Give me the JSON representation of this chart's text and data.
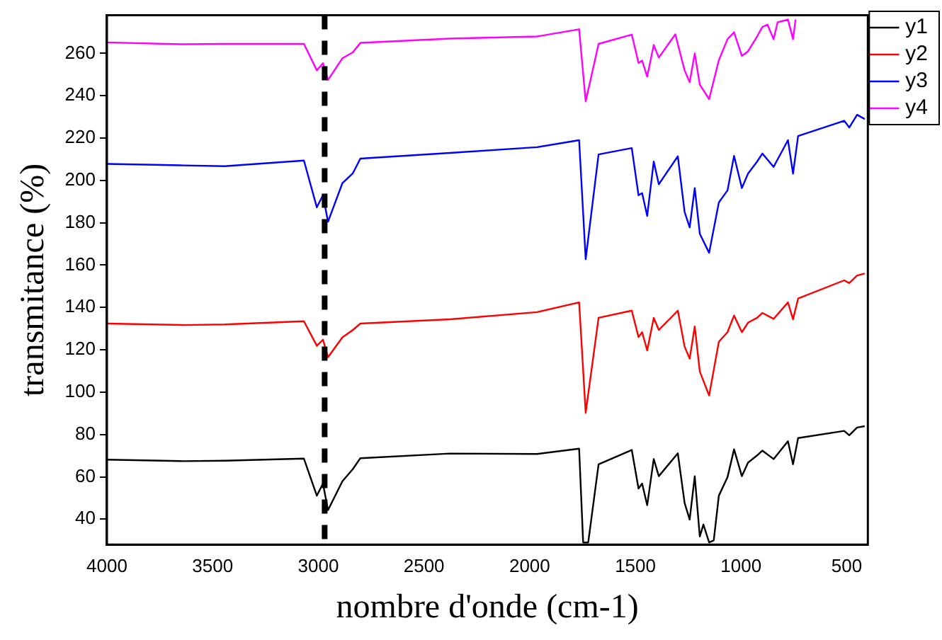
{
  "chart_data": {
    "type": "line",
    "xlabel": "nombre d'onde (cm-1)",
    "ylabel": "transmitance (%)",
    "xlim": [
      4000,
      400
    ],
    "ylim": [
      28,
      278
    ],
    "xticks": [
      4000,
      3500,
      3000,
      2500,
      2000,
      1500,
      1000,
      500
    ],
    "yticks": [
      40,
      60,
      80,
      100,
      120,
      140,
      160,
      180,
      200,
      220,
      240,
      260
    ],
    "grid": false,
    "legend": "top right",
    "marker": "none",
    "line_style": "solid",
    "ref_lines": [
      {
        "axis": "x",
        "value": 2970,
        "color": "#000000",
        "line_style": "dashed"
      }
    ],
    "series": [
      {
        "name": "y1",
        "color": "#000000",
        "x": [
          4000,
          3637,
          3443,
          3068,
          3007,
          2978,
          2954,
          2886,
          2837,
          2801,
          2377,
          1965,
          1766,
          1747,
          1723,
          1674,
          1517,
          1485,
          1468,
          1444,
          1413,
          1389,
          1299,
          1267,
          1243,
          1219,
          1195,
          1178,
          1151,
          1129,
          1105,
          1064,
          1033,
          996,
          967,
          924,
          899,
          846,
          778,
          754,
          730,
          512,
          488,
          451,
          415
        ],
        "values": [
          68.1,
          67.4,
          67.6,
          68.6,
          51.1,
          56.8,
          44.3,
          57.9,
          63.6,
          68.8,
          71,
          70.8,
          73.3,
          29,
          29,
          65.9,
          72.7,
          54.5,
          56.8,
          46.6,
          68.4,
          60.3,
          71.1,
          47.7,
          39.8,
          60.3,
          31.8,
          37.5,
          29,
          30,
          51.1,
          59.8,
          73,
          60.3,
          66.7,
          70.1,
          72.4,
          68.4,
          76.8,
          65.9,
          78.3,
          81.7,
          79.6,
          83.3,
          83.9
        ]
      },
      {
        "name": "y2",
        "color": "#ff0000",
        "x": [
          4000,
          3637,
          3443,
          3068,
          3007,
          2978,
          2954,
          2886,
          2837,
          2801,
          2377,
          1965,
          1766,
          1735,
          1674,
          1517,
          1485,
          1468,
          1444,
          1413,
          1389,
          1299,
          1267,
          1243,
          1219,
          1195,
          1151,
          1105,
          1064,
          1033,
          996,
          967,
          924,
          899,
          846,
          778,
          754,
          730,
          512,
          488,
          451,
          415
        ],
        "values": [
          132.4,
          131.7,
          132,
          133.5,
          121.9,
          124.8,
          116.5,
          125.9,
          129.3,
          132.4,
          134.4,
          137.8,
          142.4,
          90.2,
          135.1,
          138.5,
          126,
          128.3,
          119.7,
          135.1,
          129.4,
          138.5,
          121.5,
          115.8,
          131,
          109.7,
          98.4,
          123.8,
          128.3,
          136.2,
          128.3,
          132.8,
          135.1,
          137.4,
          134.6,
          142.4,
          134.4,
          144.2,
          152.8,
          151.5,
          155.1,
          156
        ]
      },
      {
        "name": "y3",
        "color": "#0000ff",
        "x": [
          4000,
          3637,
          3443,
          3068,
          3007,
          2978,
          2954,
          2886,
          2837,
          2801,
          2377,
          1965,
          1766,
          1735,
          1674,
          1517,
          1485,
          1468,
          1444,
          1413,
          1389,
          1299,
          1267,
          1243,
          1219,
          1195,
          1151,
          1105,
          1064,
          1033,
          996,
          967,
          924,
          899,
          846,
          778,
          754,
          730,
          512,
          488,
          451,
          415
        ],
        "values": [
          207.8,
          207.1,
          206.7,
          209.4,
          187.3,
          193,
          180.5,
          198.7,
          203.3,
          210.3,
          213,
          215.7,
          219,
          162.8,
          212.3,
          215.3,
          193,
          194,
          183.2,
          208.9,
          198.2,
          211.4,
          185.1,
          177.8,
          196.4,
          174.8,
          165.8,
          189.6,
          195.3,
          211.6,
          196.4,
          203.2,
          208.9,
          212.7,
          206.4,
          219,
          203.2,
          221,
          228.2,
          225,
          231,
          229
        ]
      },
      {
        "name": "y4",
        "color": "#ff00ff",
        "x": [
          4000,
          3637,
          3443,
          3068,
          3007,
          2978,
          2954,
          2886,
          2837,
          2801,
          2377,
          1965,
          1766,
          1735,
          1674,
          1517,
          1485,
          1468,
          1444,
          1413,
          1389,
          1311,
          1267,
          1243,
          1219,
          1195,
          1151,
          1105,
          1064,
          1033,
          996,
          967,
          924,
          899,
          875,
          846,
          827,
          778,
          754,
          742
        ],
        "values": [
          265.2,
          264.3,
          264.5,
          264.5,
          252,
          255.4,
          247.5,
          257.7,
          260.5,
          265,
          267,
          268,
          271.4,
          237.3,
          264.5,
          268.9,
          255.5,
          256.6,
          249,
          264,
          258,
          269,
          252,
          246.4,
          260,
          245.2,
          238.4,
          256.8,
          266.7,
          270,
          258.8,
          261,
          268,
          272.5,
          273.6,
          266.7,
          274.7,
          276,
          266.7,
          276
        ]
      }
    ]
  }
}
